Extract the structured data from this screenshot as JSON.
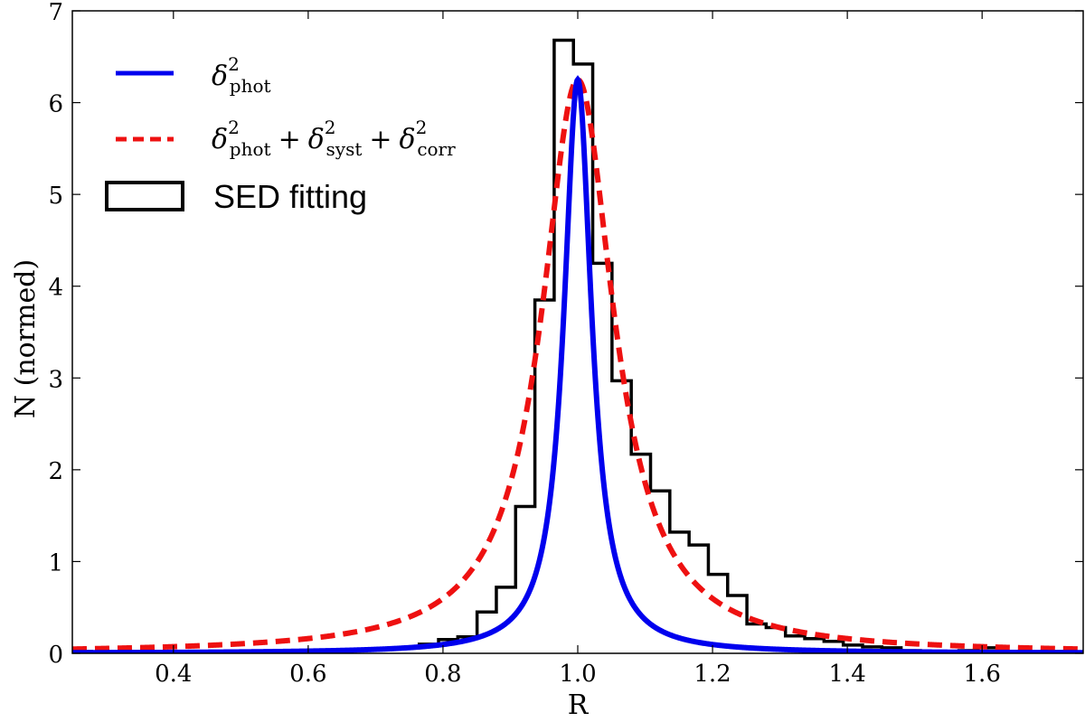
{
  "chart_data": {
    "type": "line+histogram",
    "xlabel": "R",
    "ylabel": "N (normed)",
    "xlim": [
      0.25,
      1.75
    ],
    "ylim": [
      0,
      7
    ],
    "xticks": [
      {
        "value": 0.4,
        "label": "0.4"
      },
      {
        "value": 0.6,
        "label": "0.6"
      },
      {
        "value": 0.8,
        "label": "0.8"
      },
      {
        "value": 1.0,
        "label": "1.0"
      },
      {
        "value": 1.2,
        "label": "1.2"
      },
      {
        "value": 1.4,
        "label": "1.4"
      },
      {
        "value": 1.6,
        "label": "1.6"
      }
    ],
    "yticks": [
      {
        "value": 0,
        "label": "0"
      },
      {
        "value": 1,
        "label": "1"
      },
      {
        "value": 2,
        "label": "2"
      },
      {
        "value": 3,
        "label": "3"
      },
      {
        "value": 4,
        "label": "4"
      },
      {
        "value": 5,
        "label": "5"
      },
      {
        "value": 6,
        "label": "6"
      },
      {
        "value": 7,
        "label": "7"
      }
    ],
    "legend_position": "top-left",
    "series": [
      {
        "name": "δ²_phot",
        "legend": {
          "delta": "δ",
          "sup": "2",
          "sub": "phot"
        },
        "style": "solid",
        "color": "#0000ee",
        "kind": "lorentzian",
        "center": 1.0,
        "peak": 6.25,
        "hwhm": 0.025
      },
      {
        "name": "δ²_phot + δ²_syst + δ²_corr",
        "legend": {
          "terms": [
            {
              "delta": "δ",
              "sup": "2",
              "sub": "phot"
            },
            {
              "delta": "δ",
              "sup": "2",
              "sub": "syst"
            },
            {
              "delta": "δ",
              "sup": "2",
              "sub": "corr"
            }
          ],
          "plus": "+"
        },
        "style": "dashed",
        "color": "#ee1111",
        "kind": "lorentzian",
        "center": 1.0,
        "peak": 6.25,
        "hwhm": 0.065
      },
      {
        "name": "SED fitting",
        "style": "step",
        "color": "#000000",
        "bin_width": 0.0286,
        "bin_edges_start": 0.25,
        "values": [
          0.02,
          0.01,
          0.0,
          0.02,
          0.01,
          0.0,
          0.0,
          0.0,
          0.0,
          0.0,
          0.0,
          0.01,
          0.01,
          0.02,
          0.03,
          0.04,
          0.05,
          0.06,
          0.1,
          0.15,
          0.18,
          0.45,
          0.72,
          1.6,
          3.85,
          6.68,
          6.42,
          4.25,
          2.97,
          2.17,
          1.77,
          1.32,
          1.18,
          0.86,
          0.63,
          0.32,
          0.28,
          0.19,
          0.16,
          0.13,
          0.09,
          0.07,
          0.06,
          0.03,
          0.02,
          0.02,
          0.03,
          0.06,
          0.02,
          0.01,
          0.01,
          0.02
        ]
      }
    ]
  }
}
